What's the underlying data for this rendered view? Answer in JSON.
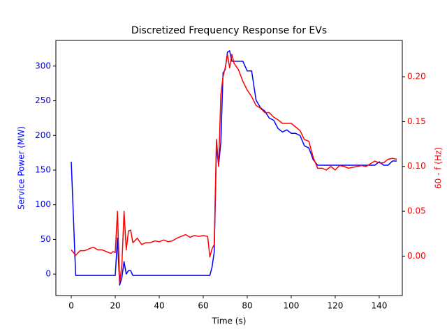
{
  "chart_data": {
    "type": "line",
    "title": "Discretized Frequency Response for EVs",
    "xlabel": "Time (s)",
    "ylabel": "Service Power (MW)",
    "y2label": "60 - f (Hz)",
    "x": [
      0,
      2,
      4,
      6,
      8,
      10,
      12,
      14,
      16,
      18,
      19,
      20,
      21,
      22,
      23,
      24,
      25,
      26,
      27,
      28,
      30,
      32,
      34,
      36,
      38,
      40,
      42,
      44,
      46,
      48,
      50,
      52,
      54,
      56,
      58,
      60,
      62,
      63,
      64,
      65,
      66,
      67,
      68,
      69,
      70,
      71,
      72,
      73,
      74,
      76,
      78,
      80,
      82,
      84,
      86,
      88,
      90,
      92,
      94,
      96,
      98,
      100,
      102,
      104,
      106,
      108,
      110,
      112,
      114,
      116,
      118,
      120,
      122,
      124,
      126,
      128,
      130,
      132,
      134,
      136,
      138,
      140,
      142,
      144,
      146,
      148
    ],
    "series": [
      {
        "color": "#0000ff",
        "axis": "y",
        "values": [
          162,
          -2,
          -2,
          -2,
          -2,
          -2,
          -2,
          -2,
          -2,
          -2,
          -2,
          -2,
          52,
          -16,
          -5,
          18,
          0,
          5,
          5,
          -2,
          -2,
          -2,
          -2,
          -2,
          -2,
          -2,
          -2,
          -2,
          -2,
          -2,
          -2,
          -2,
          -2,
          -2,
          -2,
          -2,
          -2,
          -2,
          10,
          32,
          183,
          157,
          190,
          290,
          295,
          320,
          322,
          307,
          307,
          307,
          307,
          293,
          293,
          251,
          240,
          235,
          225,
          222,
          210,
          205,
          208,
          203,
          203,
          200,
          185,
          182,
          165,
          157,
          157,
          157,
          157,
          157,
          157,
          157,
          157,
          157,
          157,
          157,
          157,
          157,
          157,
          162,
          157,
          157,
          163,
          163
        ]
      },
      {
        "color": "#ff0000",
        "axis": "y2",
        "values": [
          0.007,
          0.001,
          0.006,
          0.006,
          0.008,
          0.01,
          0.007,
          0.007,
          0.005,
          0.003,
          0.005,
          0.004,
          0.05,
          -0.03,
          -0.01,
          0.05,
          0.007,
          0.028,
          0.029,
          0.015,
          0.02,
          0.013,
          0.015,
          0.015,
          0.017,
          0.016,
          0.018,
          0.016,
          0.017,
          0.02,
          0.022,
          0.024,
          0.021,
          0.023,
          0.022,
          0.023,
          0.022,
          -0.001,
          0.008,
          0.013,
          0.13,
          0.1,
          0.18,
          0.2,
          0.21,
          0.225,
          0.21,
          0.225,
          0.215,
          0.208,
          0.195,
          0.185,
          0.178,
          0.168,
          0.165,
          0.16,
          0.16,
          0.155,
          0.152,
          0.148,
          0.148,
          0.148,
          0.144,
          0.14,
          0.13,
          0.128,
          0.11,
          0.098,
          0.098,
          0.096,
          0.1,
          0.096,
          0.101,
          0.1,
          0.098,
          0.099,
          0.1,
          0.101,
          0.1,
          0.103,
          0.106,
          0.104,
          0.104,
          0.108,
          0.109,
          0.108
        ]
      }
    ],
    "xlim": [
      -7,
      150.5
    ],
    "xticks": [
      0,
      20,
      40,
      60,
      80,
      100,
      120,
      140
    ],
    "ylim": [
      -31,
      337
    ],
    "yticks": [
      0,
      50,
      100,
      150,
      200,
      250,
      300
    ],
    "ycolor": "#0000ff",
    "y2lim": [
      -0.044,
      0.2405
    ],
    "y2ticks": [
      {
        "value": 0,
        "label": "0.00"
      },
      {
        "value": 0.05,
        "label": "0.05"
      },
      {
        "value": 0.1,
        "label": "0.10"
      },
      {
        "value": 0.15,
        "label": "0.15"
      },
      {
        "value": 0.2,
        "label": "0.20"
      }
    ],
    "y2color": "#ff0000"
  }
}
